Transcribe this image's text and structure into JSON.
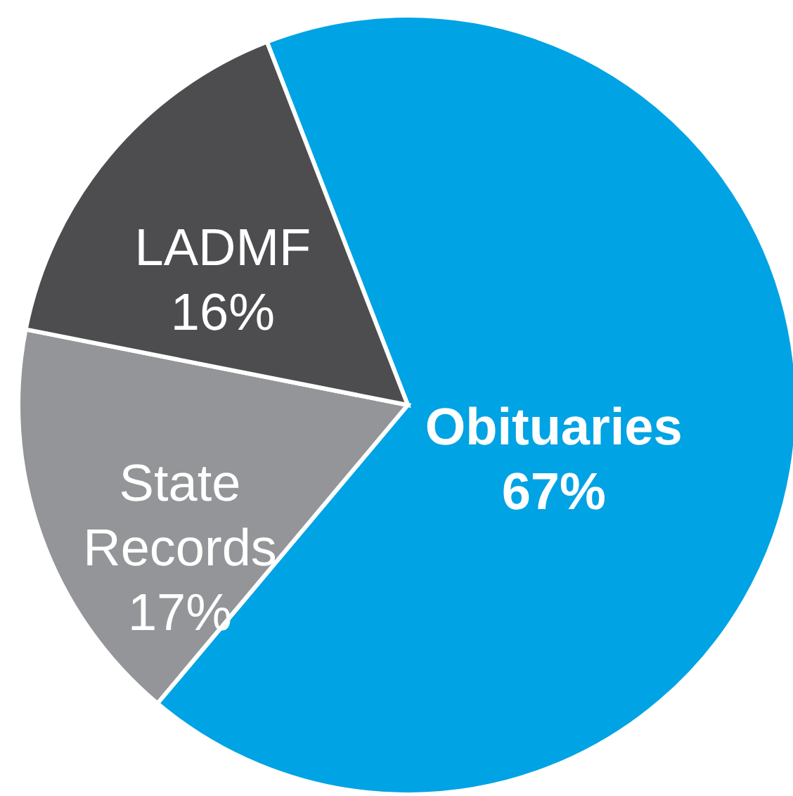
{
  "chart_data": {
    "type": "pie",
    "categories": [
      "Obituaries",
      "State Records",
      "LADMF"
    ],
    "values": [
      67,
      17,
      16
    ],
    "colors": [
      "#00a3e4",
      "#939598",
      "#4d4d4f"
    ],
    "value_labels": [
      "67%",
      "17%",
      "16%"
    ],
    "data_labels": true
  }
}
